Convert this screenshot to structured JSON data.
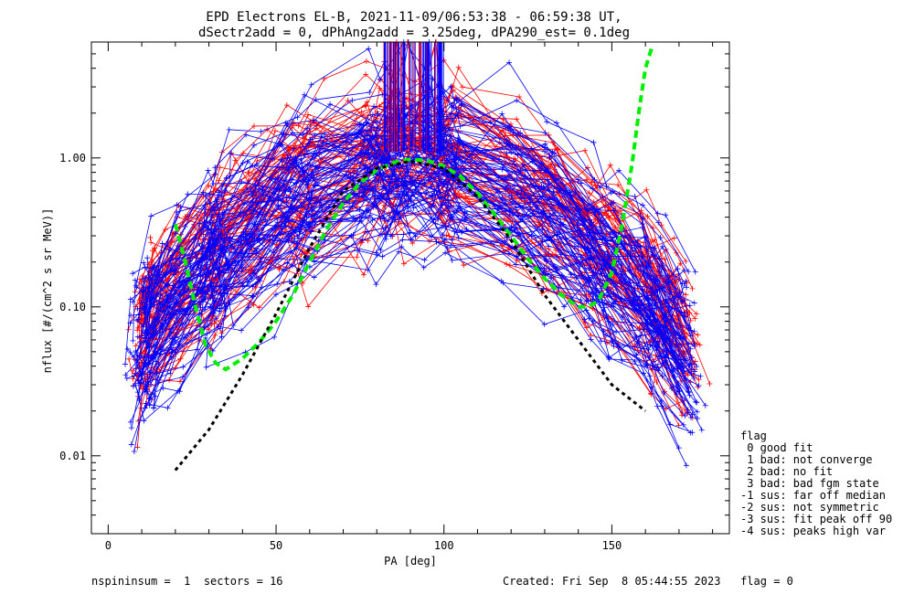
{
  "chart_data": {
    "type": "line",
    "title_line1": "EPD Electrons EL-B, 2021-11-09/06:53:38 - 06:59:38 UT,",
    "title_line2": "dSectr2add = 0, dPhAng2add = 3.25deg, dPA290_est=   0.1deg",
    "xlabel": "PA [deg]",
    "ylabel": "nflux [#/(cm^2 s sr MeV)]",
    "xlim": [
      -5,
      185
    ],
    "ylim": [
      0.003,
      6.0
    ],
    "yscale": "log",
    "x_ticks": [
      0,
      50,
      100,
      150
    ],
    "x_tick_labels": [
      "0",
      "50",
      "100",
      "150"
    ],
    "y_ticks": [
      0.01,
      0.1,
      1.0
    ],
    "y_tick_labels": [
      "0.01",
      "0.10",
      "1.00"
    ],
    "grid": false,
    "series": [
      {
        "color": "#00ee00",
        "style": "dashed",
        "x": [
          20,
          23,
          26,
          29,
          32,
          35,
          40,
          45,
          50,
          55,
          60,
          65,
          70,
          75,
          80,
          85,
          90,
          95,
          100,
          105,
          110,
          115,
          120,
          125,
          130,
          135,
          140,
          143,
          146,
          150,
          153,
          156,
          158,
          160,
          162
        ],
        "values": [
          0.36,
          0.2,
          0.1,
          0.055,
          0.042,
          0.038,
          0.045,
          0.058,
          0.08,
          0.12,
          0.2,
          0.33,
          0.5,
          0.68,
          0.83,
          0.93,
          0.98,
          0.96,
          0.88,
          0.75,
          0.58,
          0.42,
          0.3,
          0.21,
          0.155,
          0.12,
          0.1,
          0.1,
          0.11,
          0.17,
          0.35,
          0.9,
          2.0,
          4.0,
          5.6
        ]
      },
      {
        "color": "#000000",
        "style": "dotted",
        "x": [
          20,
          30,
          40,
          50,
          60,
          70,
          80,
          90,
          100,
          110,
          120,
          130,
          140,
          150,
          160
        ],
        "values": [
          0.008,
          0.015,
          0.035,
          0.09,
          0.25,
          0.6,
          0.85,
          0.95,
          0.85,
          0.55,
          0.28,
          0.12,
          0.06,
          0.03,
          0.02
        ]
      }
    ],
    "legend_title": "flag",
    "legend_entries": [
      " 0 good fit",
      " 1 bad: not converge",
      " 2 bad: no fit",
      " 3 bad: bad fgm state",
      "-1 sus: far off median",
      "-2 sus: not symmetric",
      "-3 sus: fit peak off 90",
      "-4 sus: peaks high var"
    ],
    "legend_position": "right"
  },
  "footer": {
    "left": "nspininsum =  1  sectors = 16",
    "right": "Created: Fri Sep  8 05:44:55 2023   flag = 0"
  },
  "colors": {
    "red_traces": "#ff0000",
    "blue_traces": "#0000ff",
    "fit": "#00ee00",
    "model": "#000000"
  }
}
